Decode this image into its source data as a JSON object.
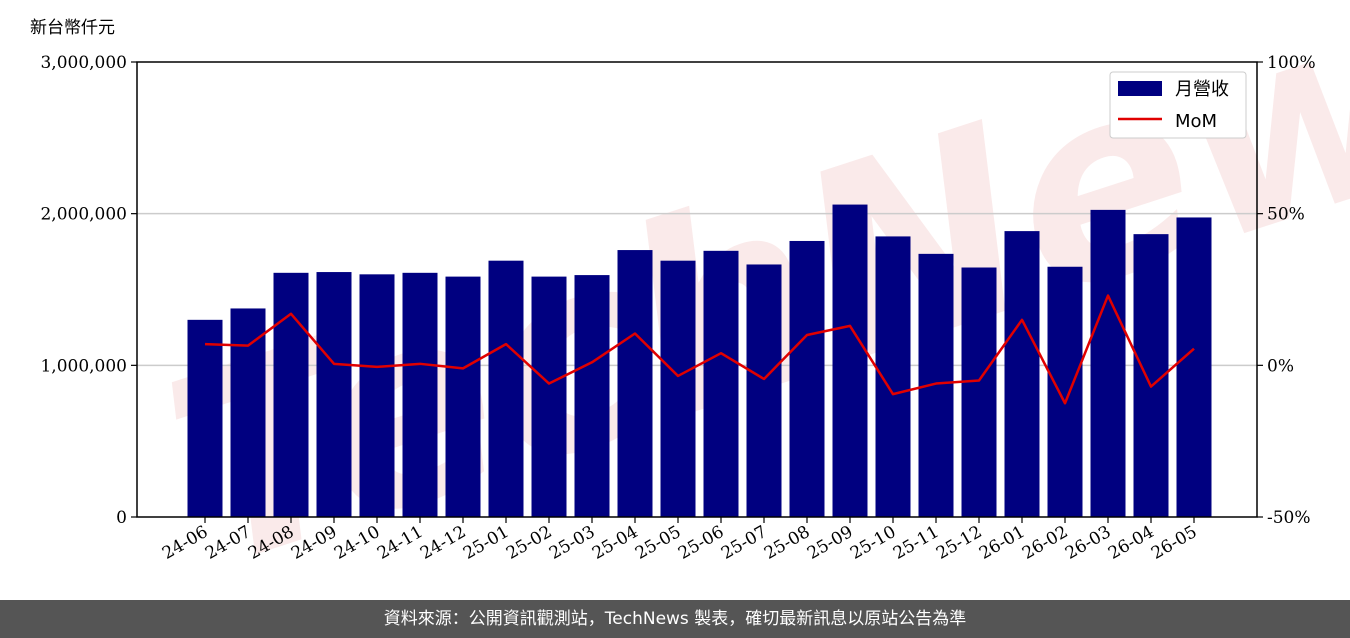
{
  "watermark": "TechNews",
  "footer": {
    "text": "資料來源：公開資訊觀測站，TechNews 製表，確切最新訊息以原站公告為準"
  },
  "chart_data": {
    "type": "bar",
    "ylabel": "新台幣仟元",
    "categories": [
      "24-06",
      "24-07",
      "24-08",
      "24-09",
      "24-10",
      "24-11",
      "24-12",
      "25-01",
      "25-02",
      "25-03",
      "25-04",
      "25-05",
      "25-06",
      "25-07",
      "25-08",
      "25-09",
      "25-10",
      "25-11",
      "25-12",
      "26-01",
      "26-02",
      "26-03",
      "26-04",
      "26-05"
    ],
    "series": [
      {
        "name": "月營收",
        "type": "bar",
        "axis": "left",
        "color": "#000080",
        "values": [
          1300000,
          1375000,
          1610000,
          1615000,
          1600000,
          1610000,
          1585000,
          1690000,
          1585000,
          1595000,
          1760000,
          1690000,
          1755000,
          1665000,
          1820000,
          2060000,
          1850000,
          1735000,
          1645000,
          1885000,
          1650000,
          2025000,
          1865000,
          1975000
        ]
      },
      {
        "name": "MoM",
        "type": "line",
        "axis": "right",
        "color": "#e00000",
        "unit": "%",
        "values": [
          7,
          6.5,
          17,
          0.5,
          -0.5,
          0.5,
          -1,
          7,
          -6,
          1,
          10.5,
          -3.5,
          4,
          -4.5,
          10,
          13,
          -9.5,
          -6,
          -5,
          15,
          -12.5,
          23,
          -7,
          5.5
        ]
      }
    ],
    "y_left": {
      "min": 0,
      "max": 3000000,
      "ticks": [
        0,
        1000000,
        2000000,
        3000000
      ],
      "tick_labels": [
        "0",
        "1,000,000",
        "2,000,000",
        "3,000,000"
      ]
    },
    "y_right": {
      "min": -50,
      "max": 100,
      "ticks": [
        -50,
        0,
        50,
        100
      ],
      "tick_labels": [
        "-50%",
        "0%",
        "50%",
        "100%"
      ]
    },
    "grid": "horizontal",
    "legend_position": "top-right"
  }
}
